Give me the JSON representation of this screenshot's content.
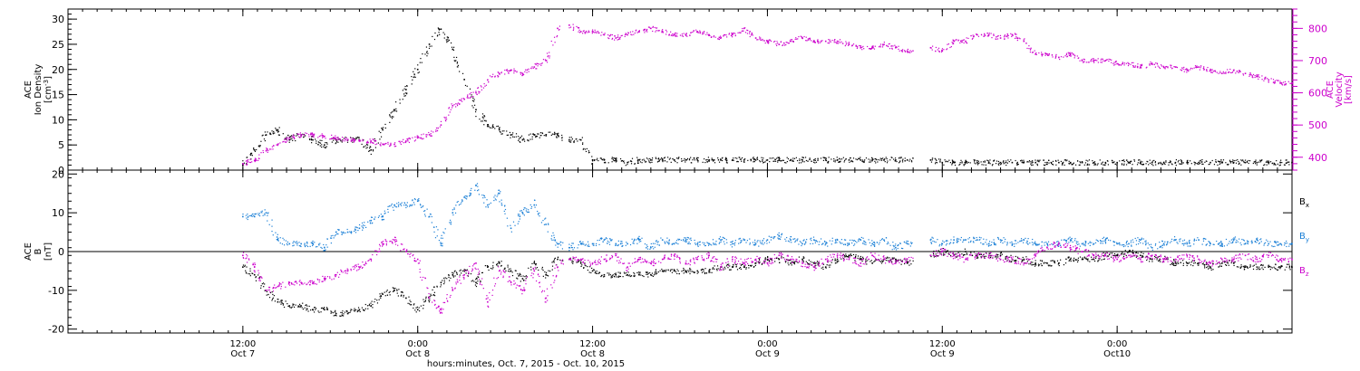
{
  "chart_data": [
    {
      "type": "scatter",
      "panel": "top",
      "ylabel": [
        "ACE",
        "Ion Density",
        "[cm",
        "-3",
        "]"
      ],
      "ylabel_right": [
        "ACE",
        "Velocity",
        "[km/s]"
      ],
      "ylim": [
        0,
        32
      ],
      "yticks": [
        0,
        5,
        10,
        15,
        20,
        25,
        30
      ],
      "ylim_right": [
        360,
        860
      ],
      "yticks_right": [
        400,
        500,
        600,
        700,
        800
      ],
      "series": [
        {
          "color": "#000000",
          "axis": "left",
          "x": [
            0,
            1,
            2,
            3,
            4,
            5,
            6,
            7,
            8,
            9,
            10,
            11,
            12,
            13,
            14,
            15,
            16,
            17,
            18,
            19,
            20,
            21,
            22,
            23,
            24,
            25,
            26,
            27,
            28,
            29,
            30,
            31,
            32,
            33,
            34,
            35,
            36,
            37,
            38,
            39,
            40,
            41,
            42,
            43,
            44,
            45,
            46,
            47,
            48,
            49,
            50,
            51,
            52,
            53,
            54,
            55,
            56,
            57,
            58,
            59,
            60,
            61,
            62,
            63,
            64,
            65,
            66,
            67,
            68,
            69,
            70,
            71,
            72,
            73,
            74,
            75,
            76,
            77,
            78,
            79,
            80,
            81,
            82,
            83,
            84,
            85,
            86,
            87,
            88,
            89,
            90
          ],
          "y": [
            1,
            4,
            7,
            8,
            6,
            7,
            6,
            5,
            6,
            6,
            6,
            4,
            8,
            12,
            16,
            20,
            25,
            28,
            24,
            18,
            12,
            9,
            8,
            7,
            6,
            7,
            7,
            7,
            6,
            6,
            2,
            2,
            2,
            1.5,
            2,
            2,
            2,
            2,
            2,
            2,
            2,
            2,
            2,
            2,
            2,
            2,
            2,
            2,
            2,
            2,
            2,
            2,
            2,
            2,
            2,
            2,
            2,
            2,
            2,
            2,
            1.5,
            1.5,
            1.5,
            1.5,
            1.5,
            1.5,
            1.5,
            1.5,
            1.5,
            1.5,
            1.5,
            1.5,
            1.5,
            1.5,
            1.5,
            1.5,
            1.5,
            1.5,
            1.5,
            1.5,
            1.5,
            1.5,
            1.5,
            1.5,
            1.5,
            1.5,
            1.5,
            1.5,
            1.5,
            1.5,
            1.5
          ]
        },
        {
          "color": "#cc00cc",
          "axis": "right",
          "x": [
            0,
            1,
            2,
            3,
            4,
            5,
            6,
            7,
            8,
            9,
            10,
            11,
            12,
            13,
            14,
            15,
            16,
            17,
            18,
            19,
            20,
            21,
            22,
            23,
            24,
            25,
            26,
            27,
            28,
            29,
            30,
            31,
            32,
            33,
            34,
            35,
            36,
            37,
            38,
            39,
            40,
            41,
            42,
            43,
            44,
            45,
            46,
            47,
            48,
            49,
            50,
            51,
            52,
            53,
            54,
            55,
            56,
            57,
            58,
            59,
            60,
            61,
            62,
            63,
            64,
            65,
            66,
            67,
            68,
            69,
            70,
            71,
            72,
            73,
            74,
            75,
            76,
            77,
            78,
            79,
            80,
            81,
            82,
            83,
            84,
            85,
            86,
            87,
            88,
            89,
            90
          ],
          "y": [
            380,
            390,
            420,
            440,
            460,
            470,
            470,
            465,
            460,
            455,
            450,
            450,
            440,
            440,
            450,
            460,
            470,
            500,
            560,
            580,
            600,
            640,
            660,
            670,
            660,
            680,
            700,
            800,
            810,
            790,
            790,
            780,
            770,
            780,
            790,
            800,
            790,
            780,
            780,
            790,
            780,
            770,
            780,
            800,
            770,
            760,
            750,
            760,
            770,
            760,
            760,
            760,
            750,
            740,
            740,
            750,
            740,
            730,
            730,
            740,
            730,
            760,
            760,
            780,
            780,
            770,
            780,
            760,
            720,
            720,
            710,
            720,
            700,
            700,
            700,
            690,
            690,
            680,
            690,
            680,
            680,
            670,
            680,
            670,
            660,
            670,
            660,
            650,
            640,
            630,
            630
          ]
        }
      ],
      "x_gap": [
        [
          27.5,
          28
        ],
        [
          57.5,
          59
        ]
      ]
    },
    {
      "type": "scatter",
      "panel": "bottom",
      "ylabel": [
        "ACE",
        "B",
        "[nT]"
      ],
      "ylim": [
        -21,
        21
      ],
      "yticks": [
        -20,
        -10,
        0,
        10,
        20
      ],
      "zero_line": true,
      "legend": [
        {
          "label": "B",
          "sub": "x",
          "color": "#000000"
        },
        {
          "label": "B",
          "sub": "y",
          "color": "#1a7fd6"
        },
        {
          "label": "B",
          "sub": "z",
          "color": "#cc00cc"
        }
      ],
      "series": [
        {
          "color": "#000000",
          "x": [
            0,
            1,
            2,
            3,
            4,
            5,
            6,
            7,
            8,
            9,
            10,
            11,
            12,
            13,
            14,
            15,
            16,
            17,
            18,
            19,
            20,
            21,
            22,
            23,
            24,
            25,
            26,
            27,
            28,
            29,
            30,
            31,
            32,
            33,
            34,
            35,
            36,
            37,
            38,
            39,
            40,
            41,
            42,
            43,
            44,
            45,
            46,
            47,
            48,
            49,
            50,
            51,
            52,
            53,
            54,
            55,
            56,
            57,
            58,
            59,
            60,
            61,
            62,
            63,
            64,
            65,
            66,
            67,
            68,
            69,
            70,
            71,
            72,
            73,
            74,
            75,
            76,
            77,
            78,
            79,
            80,
            81,
            82,
            83,
            84,
            85,
            86,
            87,
            88,
            89,
            90
          ],
          "y": [
            -4,
            -6,
            -10,
            -13,
            -14,
            -14,
            -15,
            -15,
            -16,
            -16,
            -15,
            -14,
            -11,
            -10,
            -12,
            -15,
            -12,
            -8,
            -6,
            -5,
            -8,
            -4,
            -3,
            -5,
            -7,
            -3,
            -6,
            -2,
            -2,
            -3,
            -5,
            -6,
            -6,
            -6,
            -6,
            -6,
            -5,
            -5,
            -5,
            -5,
            -5,
            -4,
            -4,
            -4,
            -3,
            -2,
            -2,
            -3,
            -2,
            -3,
            -4,
            -2,
            -1,
            -2,
            -3,
            -2,
            -2,
            -3,
            -3,
            -1,
            0,
            -1,
            0,
            -1,
            -1,
            -1,
            -2,
            -2,
            -3,
            -3,
            -3,
            -2,
            -2,
            -2,
            -1,
            -1,
            0,
            -1,
            -2,
            -2,
            -3,
            -3,
            -3,
            -4,
            -3,
            -3,
            -4,
            -4,
            -4,
            -4,
            -4
          ]
        },
        {
          "color": "#1a7fd6",
          "x": [
            0,
            1,
            2,
            3,
            4,
            5,
            6,
            7,
            8,
            9,
            10,
            11,
            12,
            13,
            14,
            15,
            16,
            17,
            18,
            19,
            20,
            21,
            22,
            23,
            24,
            25,
            26,
            27,
            28,
            29,
            30,
            31,
            32,
            33,
            34,
            35,
            36,
            37,
            38,
            39,
            40,
            41,
            42,
            43,
            44,
            45,
            46,
            47,
            48,
            49,
            50,
            51,
            52,
            53,
            54,
            55,
            56,
            57,
            58,
            59,
            60,
            61,
            62,
            63,
            64,
            65,
            66,
            67,
            68,
            69,
            70,
            71,
            72,
            73,
            74,
            75,
            76,
            77,
            78,
            79,
            80,
            81,
            82,
            83,
            84,
            85,
            86,
            87,
            88,
            89,
            90
          ],
          "y": [
            9,
            9,
            10,
            3,
            2,
            2,
            2,
            1,
            5,
            5,
            6,
            8,
            9,
            12,
            12,
            13,
            9,
            2,
            10,
            14,
            17,
            12,
            15,
            6,
            10,
            12,
            7,
            2,
            1,
            2,
            2,
            3,
            2,
            2,
            3,
            1,
            3,
            2,
            3,
            2,
            2,
            3,
            2,
            3,
            2,
            3,
            4,
            3,
            2,
            3,
            2,
            3,
            2,
            3,
            2,
            3,
            1,
            2,
            2,
            3,
            2,
            3,
            3,
            3,
            2,
            3,
            2,
            3,
            2,
            2,
            2,
            3,
            2,
            2,
            3,
            2,
            2,
            3,
            1,
            2,
            3,
            2,
            3,
            2,
            2,
            3,
            2,
            3,
            2,
            2,
            2
          ]
        },
        {
          "color": "#cc00cc",
          "x": [
            0,
            1,
            2,
            3,
            4,
            5,
            6,
            7,
            8,
            9,
            10,
            11,
            12,
            13,
            14,
            15,
            16,
            17,
            18,
            19,
            20,
            21,
            22,
            23,
            24,
            25,
            26,
            27,
            28,
            29,
            30,
            31,
            32,
            33,
            34,
            35,
            36,
            37,
            38,
            39,
            40,
            41,
            42,
            43,
            44,
            45,
            46,
            47,
            48,
            49,
            50,
            51,
            52,
            53,
            54,
            55,
            56,
            57,
            58,
            59,
            60,
            61,
            62,
            63,
            64,
            65,
            66,
            67,
            68,
            69,
            70,
            71,
            72,
            73,
            74,
            75,
            76,
            77,
            78,
            79,
            80,
            81,
            82,
            83,
            84,
            85,
            86,
            87,
            88,
            89,
            90
          ],
          "y": [
            -1,
            -4,
            -10,
            -9,
            -8,
            -8,
            -8,
            -7,
            -6,
            -5,
            -4,
            -2,
            2,
            3,
            0,
            -2,
            -12,
            -15,
            -10,
            -6,
            -3,
            -13,
            -5,
            -8,
            -10,
            -5,
            -12,
            -4,
            -2,
            -2,
            -3,
            -2,
            -1,
            -4,
            -2,
            -3,
            -2,
            -1,
            -3,
            -2,
            -1,
            -4,
            -2,
            -3,
            -2,
            -3,
            -1,
            -2,
            -3,
            -4,
            -2,
            -1,
            -2,
            -3,
            -1,
            -2,
            -3,
            -2,
            -2,
            -1,
            0,
            -1,
            -2,
            -1,
            -1,
            -2,
            -2,
            -3,
            -1,
            1,
            2,
            1,
            0,
            -1,
            -1,
            -2,
            -1,
            -2,
            -1,
            -2,
            -2,
            -1,
            -2,
            -3,
            -2,
            -2,
            -1,
            -2,
            -1,
            -2,
            -2
          ]
        }
      ],
      "x_gap": [
        [
          27.5,
          28
        ],
        [
          57.5,
          59
        ]
      ]
    }
  ],
  "x_axis": {
    "range": [
      -15,
      90
    ],
    "ticks": [
      {
        "x": 0,
        "line1": "12:00",
        "line2": "Oct 7"
      },
      {
        "x": 15,
        "line1": "0:00",
        "line2": "Oct 8"
      },
      {
        "x": 30,
        "line1": "12:00",
        "line2": "Oct 8"
      },
      {
        "x": 45,
        "line1": "0:00",
        "line2": "Oct 9"
      },
      {
        "x": 60,
        "line1": "12:00",
        "line2": "Oct 9"
      },
      {
        "x": 75,
        "line1": "0:00",
        "line2": "Oct10"
      }
    ],
    "xlabel": "hours:minutes, Oct. 7, 2015 - Oct. 10, 2015"
  },
  "colors": {
    "black": "#000000",
    "blue": "#1a7fd6",
    "magenta": "#cc00cc"
  }
}
